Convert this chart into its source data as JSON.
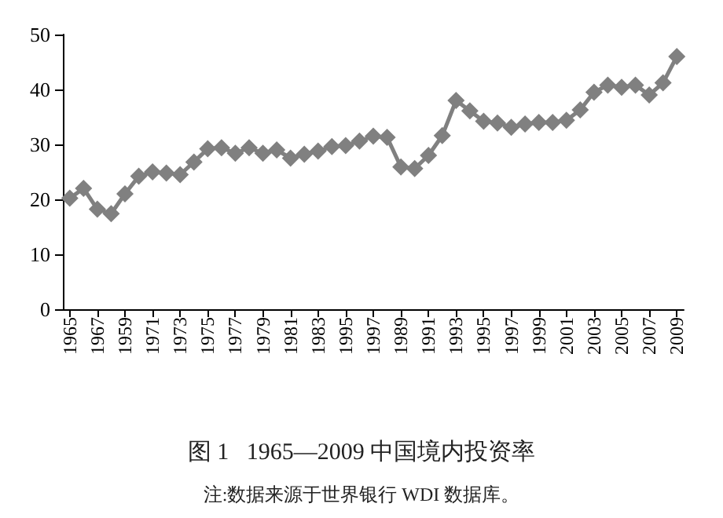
{
  "chart_data": {
    "type": "line",
    "title": "图 1   1965—2009 中国境内投资率",
    "annotations": [
      "注:数据来源于世界银行 WDI 数据库。"
    ],
    "categories": [
      "1965",
      null,
      "1967",
      null,
      "1959",
      null,
      "1971",
      null,
      "1973",
      null,
      "1975",
      null,
      "1977",
      null,
      "1979",
      null,
      "1981",
      null,
      "1983",
      null,
      "1995",
      null,
      "1997",
      null,
      "1989",
      null,
      "1991",
      null,
      "1993",
      null,
      "1995",
      null,
      "1997",
      null,
      "1999",
      null,
      "2001",
      null,
      "2003",
      null,
      "2005",
      null,
      "2007",
      null,
      "2009"
    ],
    "series": [
      {
        "color": "#808080",
        "values": [
          20.2,
          22,
          18.2,
          17.4,
          21,
          24.2,
          25,
          24.8,
          24.5,
          26.8,
          29.2,
          29.4,
          28.4,
          29.4,
          28.4,
          29,
          27.5,
          28.2,
          28.8,
          29.6,
          29.8,
          30.6,
          31.5,
          31.3,
          25.9,
          25.6,
          28,
          31.6,
          38,
          36.1,
          34.2,
          33.9,
          33.1,
          33.7,
          34,
          34,
          34.4,
          36.3,
          39.5,
          40.8,
          40.4,
          40.8,
          39,
          41.2,
          46
        ]
      }
    ],
    "ylim": [
      0,
      50
    ],
    "yticks": [
      0,
      10,
      20,
      30,
      40,
      50
    ],
    "marker": "diamond",
    "line_style": "solid"
  }
}
